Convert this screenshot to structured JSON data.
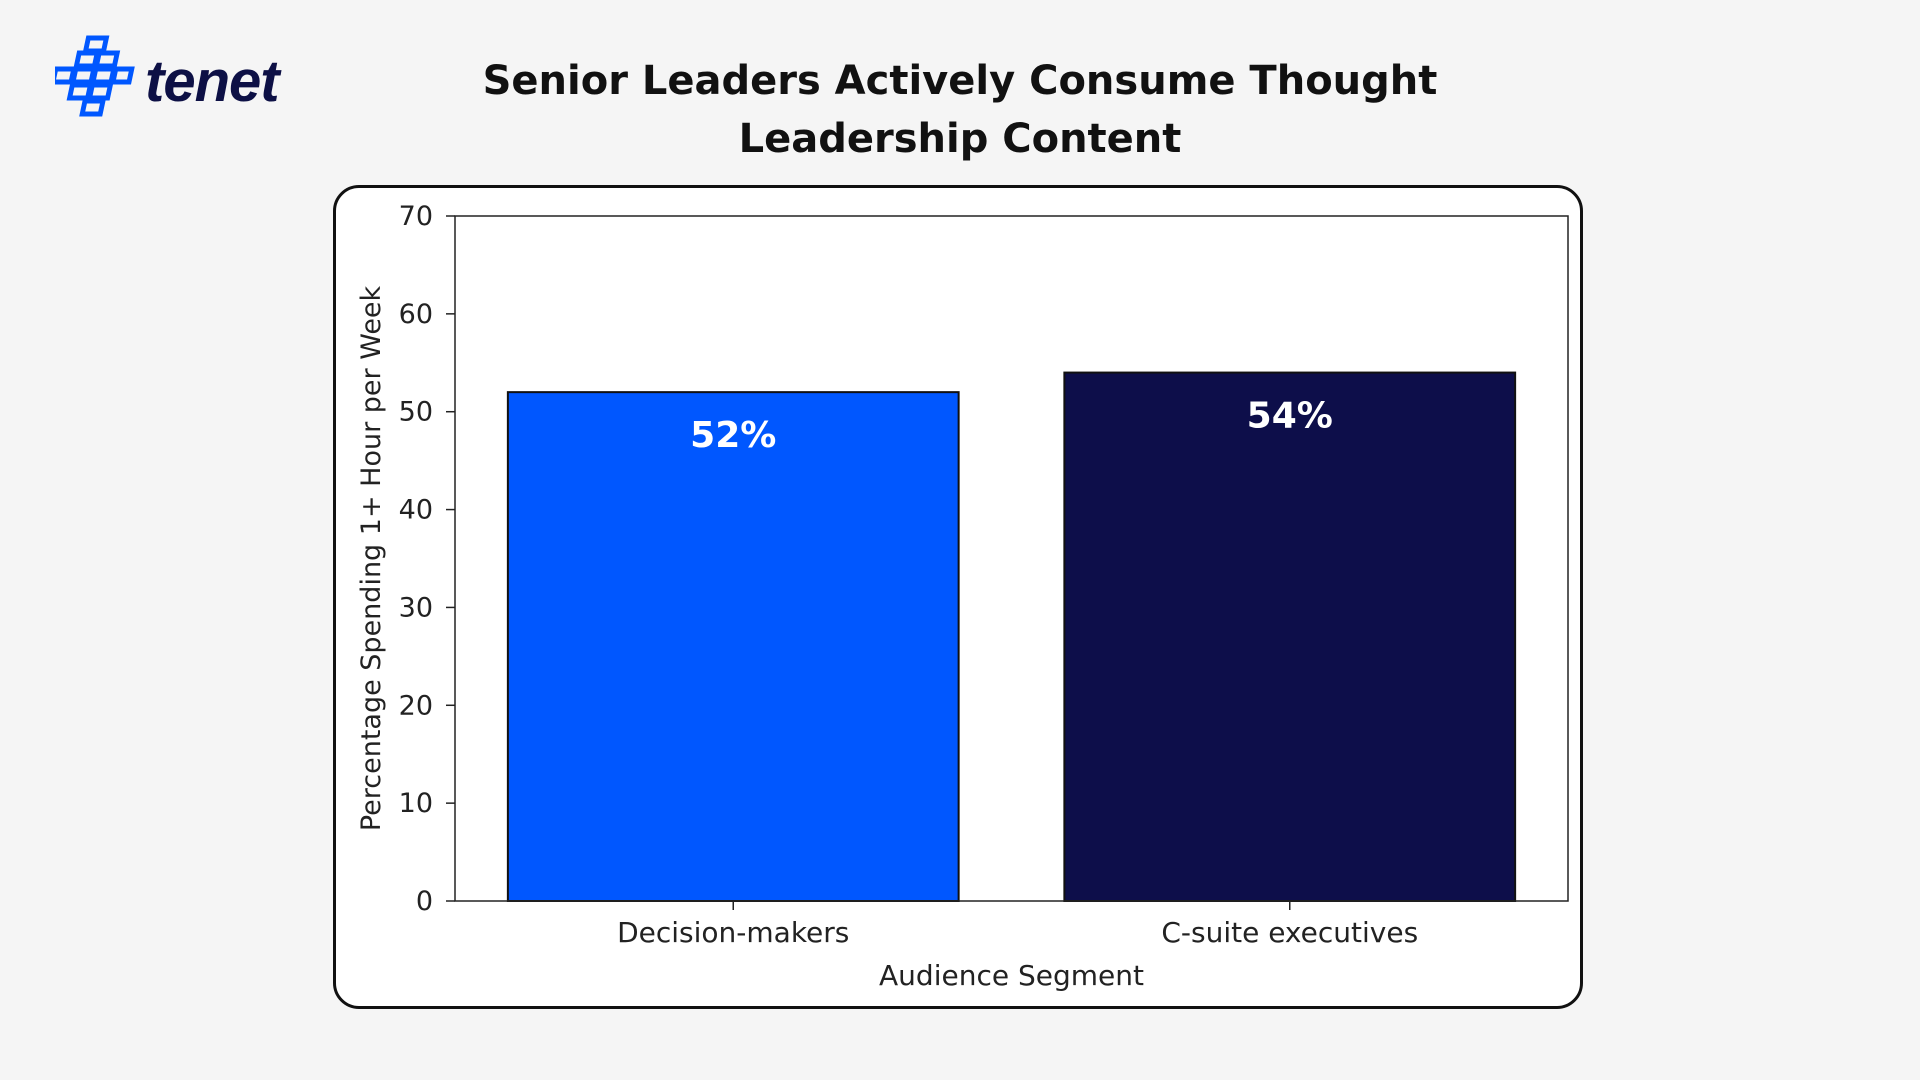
{
  "brand": {
    "name": "tenet",
    "logo_icon": "tenet-cross-logo-icon",
    "accent": "#0057ff",
    "dark": "#0d1045"
  },
  "header": {
    "title": "Senior Leaders Actively Consume Thought Leadership Content"
  },
  "chart_data": {
    "type": "bar",
    "title": "",
    "xlabel": "Audience Segment",
    "ylabel": "Percentage Spending 1+ Hour per Week",
    "ylim": [
      0,
      70
    ],
    "yticks": [
      0,
      10,
      20,
      30,
      40,
      50,
      60,
      70
    ],
    "categories": [
      "Decision-makers",
      "C-suite executives"
    ],
    "values": [
      52,
      54
    ],
    "data_labels": [
      "52%",
      "54%"
    ],
    "colors": [
      "#0057ff",
      "#0d0e4a"
    ],
    "grid": false,
    "legend": "none"
  }
}
